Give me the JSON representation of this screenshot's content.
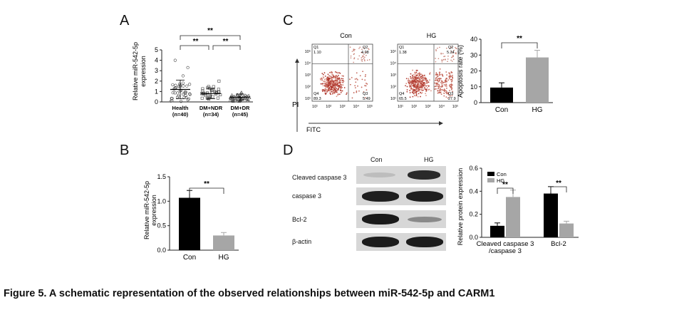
{
  "figure": {
    "caption": "Figure 5. A schematic representation of the observed relationships between miR-542-5p and CARM1"
  },
  "panel_a": {
    "letter": "A",
    "ylabel_line1": "Relative miR-542-5p",
    "ylabel_line2": "expression",
    "yticks": [
      "0",
      "1",
      "2",
      "3",
      "4",
      "5"
    ],
    "groups": [
      {
        "name": "Health",
        "n": "(n=40)"
      },
      {
        "name": "DM+NDR",
        "n": "(n=34)"
      },
      {
        "name": "DM+DR",
        "n": "(n=45)"
      }
    ],
    "sig": [
      "**",
      "**",
      "**"
    ]
  },
  "panel_b": {
    "letter": "B",
    "ylabel_line1": "Relative miR-542-5p",
    "ylabel_line2": "expression",
    "yticks": [
      "0.0",
      "0.5",
      "1.0",
      "1.5"
    ],
    "sig": "**"
  },
  "panel_c": {
    "letter": "C",
    "flow": [
      {
        "title": "Con",
        "q1": "1.10",
        "q2": "4.08",
        "q3": "5.49",
        "q4": "89.3"
      },
      {
        "title": "HG",
        "q1": "1.38",
        "q2": "5.24",
        "q3": "27.9",
        "q4": "65.5"
      }
    ],
    "quadrant_labels": [
      "Q1",
      "Q2",
      "Q3",
      "Q4"
    ],
    "y_axis_label": "PI",
    "x_axis_label": "FITC",
    "flow_ticks": [
      "10¹",
      "10²",
      "10³",
      "10⁴",
      "10⁵"
    ],
    "ylabel": "Apoptosis rate (%)",
    "yticks": [
      "0",
      "10",
      "20",
      "30",
      "40"
    ],
    "sig": "**"
  },
  "panel_d": {
    "letter": "D",
    "blot_columns": [
      "Con",
      "HG"
    ],
    "blot_rows": [
      "Cleaved caspase 3",
      "caspase 3",
      "Bcl-2",
      "β-actin"
    ],
    "ylabel": "Relative protein expression",
    "yticks": [
      "0.0",
      "0.2",
      "0.4",
      "0.6"
    ],
    "xlabel_line1": [
      "Cleaved caspase 3",
      "Bcl-2"
    ],
    "xlabel_line2": "/caspase 3",
    "sig": [
      "**",
      "**"
    ]
  },
  "chart_data": [
    {
      "type": "scatter",
      "categories": [
        "Health",
        "DM+NDR",
        "DM+DR"
      ],
      "ylabel": "Relative miR-542-5p expression",
      "ylim": [
        0,
        5
      ],
      "series": [
        {
          "name": "Health",
          "mean": 1.2,
          "sd": 0.9
        },
        {
          "name": "DM+NDR",
          "mean": 0.8,
          "sd": 0.5
        },
        {
          "name": "DM+DR",
          "mean": 0.45,
          "sd": 0.3
        }
      ]
    },
    {
      "type": "bar",
      "categories": [
        "Con",
        "HG"
      ],
      "values": [
        1.07,
        0.3
      ],
      "errors": [
        0.15,
        0.06
      ],
      "ylabel": "Relative miR-542-5p expression",
      "ylim": [
        0,
        1.5
      ],
      "colors": [
        "#000000",
        "#a6a6a6"
      ]
    },
    {
      "type": "bar",
      "categories": [
        "Con",
        "HG"
      ],
      "values": [
        9.5,
        28.5
      ],
      "errors": [
        3.0,
        4.5
      ],
      "ylabel": "Apoptosis rate (%)",
      "ylim": [
        0,
        40
      ],
      "colors": [
        "#000000",
        "#a6a6a6"
      ]
    },
    {
      "type": "bar",
      "categories": [
        "Cleaved caspase 3 /caspase 3",
        "Bcl-2"
      ],
      "series": [
        {
          "name": "Con",
          "values": [
            0.1,
            0.38
          ],
          "errors": [
            0.025,
            0.06
          ],
          "color": "#000000"
        },
        {
          "name": "HG",
          "values": [
            0.35,
            0.12
          ],
          "errors": [
            0.06,
            0.02
          ],
          "color": "#a6a6a6"
        }
      ],
      "ylabel": "Relative protein expression",
      "ylim": [
        0,
        0.6
      ],
      "legend": "top-left"
    }
  ]
}
